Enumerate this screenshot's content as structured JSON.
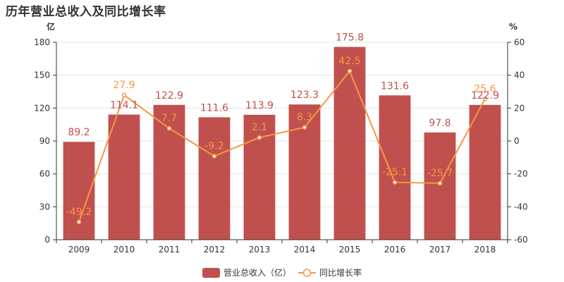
{
  "title": "历年营业总收入及同比增长率",
  "colors": {
    "bar": "#c0504d",
    "line": "#f79646",
    "axis": "#333333",
    "grid": "#e6e6e6"
  },
  "chart_data": {
    "type": "bar",
    "title": "历年营业总收入及同比增长率",
    "left_unit": "亿",
    "right_unit": "%",
    "categories": [
      "2009",
      "2010",
      "2011",
      "2012",
      "2013",
      "2014",
      "2015",
      "2016",
      "2017",
      "2018"
    ],
    "ylim_left": [
      0,
      180
    ],
    "yticks_left": [
      0,
      30,
      60,
      90,
      120,
      150,
      180
    ],
    "ylim_right": [
      -60,
      60
    ],
    "yticks_right": [
      -60,
      -40,
      -20,
      0,
      20,
      40,
      60
    ],
    "grid": true,
    "legend_position": "bottom-center",
    "series": [
      {
        "name": "营业总收入（亿）",
        "type": "bar",
        "axis": "left",
        "values": [
          89.2,
          114.1,
          122.9,
          111.6,
          113.9,
          123.3,
          175.8,
          131.6,
          97.8,
          122.9
        ],
        "labels": [
          "89.2",
          "114.1",
          "122.9",
          "111.6",
          "113.9",
          "123.3",
          "175.8",
          "131.6",
          "97.8",
          "122.9"
        ]
      },
      {
        "name": "同比增长率",
        "type": "line",
        "axis": "right",
        "values": [
          -49.2,
          27.9,
          7.7,
          -9.2,
          2.1,
          8.3,
          42.5,
          -25.1,
          -25.7,
          25.6
        ],
        "labels": [
          "-49.2",
          "27.9",
          "7.7",
          "-9.2",
          "2.1",
          "8.3",
          "42.5",
          "-25.1",
          "-25.7",
          "25.6"
        ]
      }
    ]
  }
}
